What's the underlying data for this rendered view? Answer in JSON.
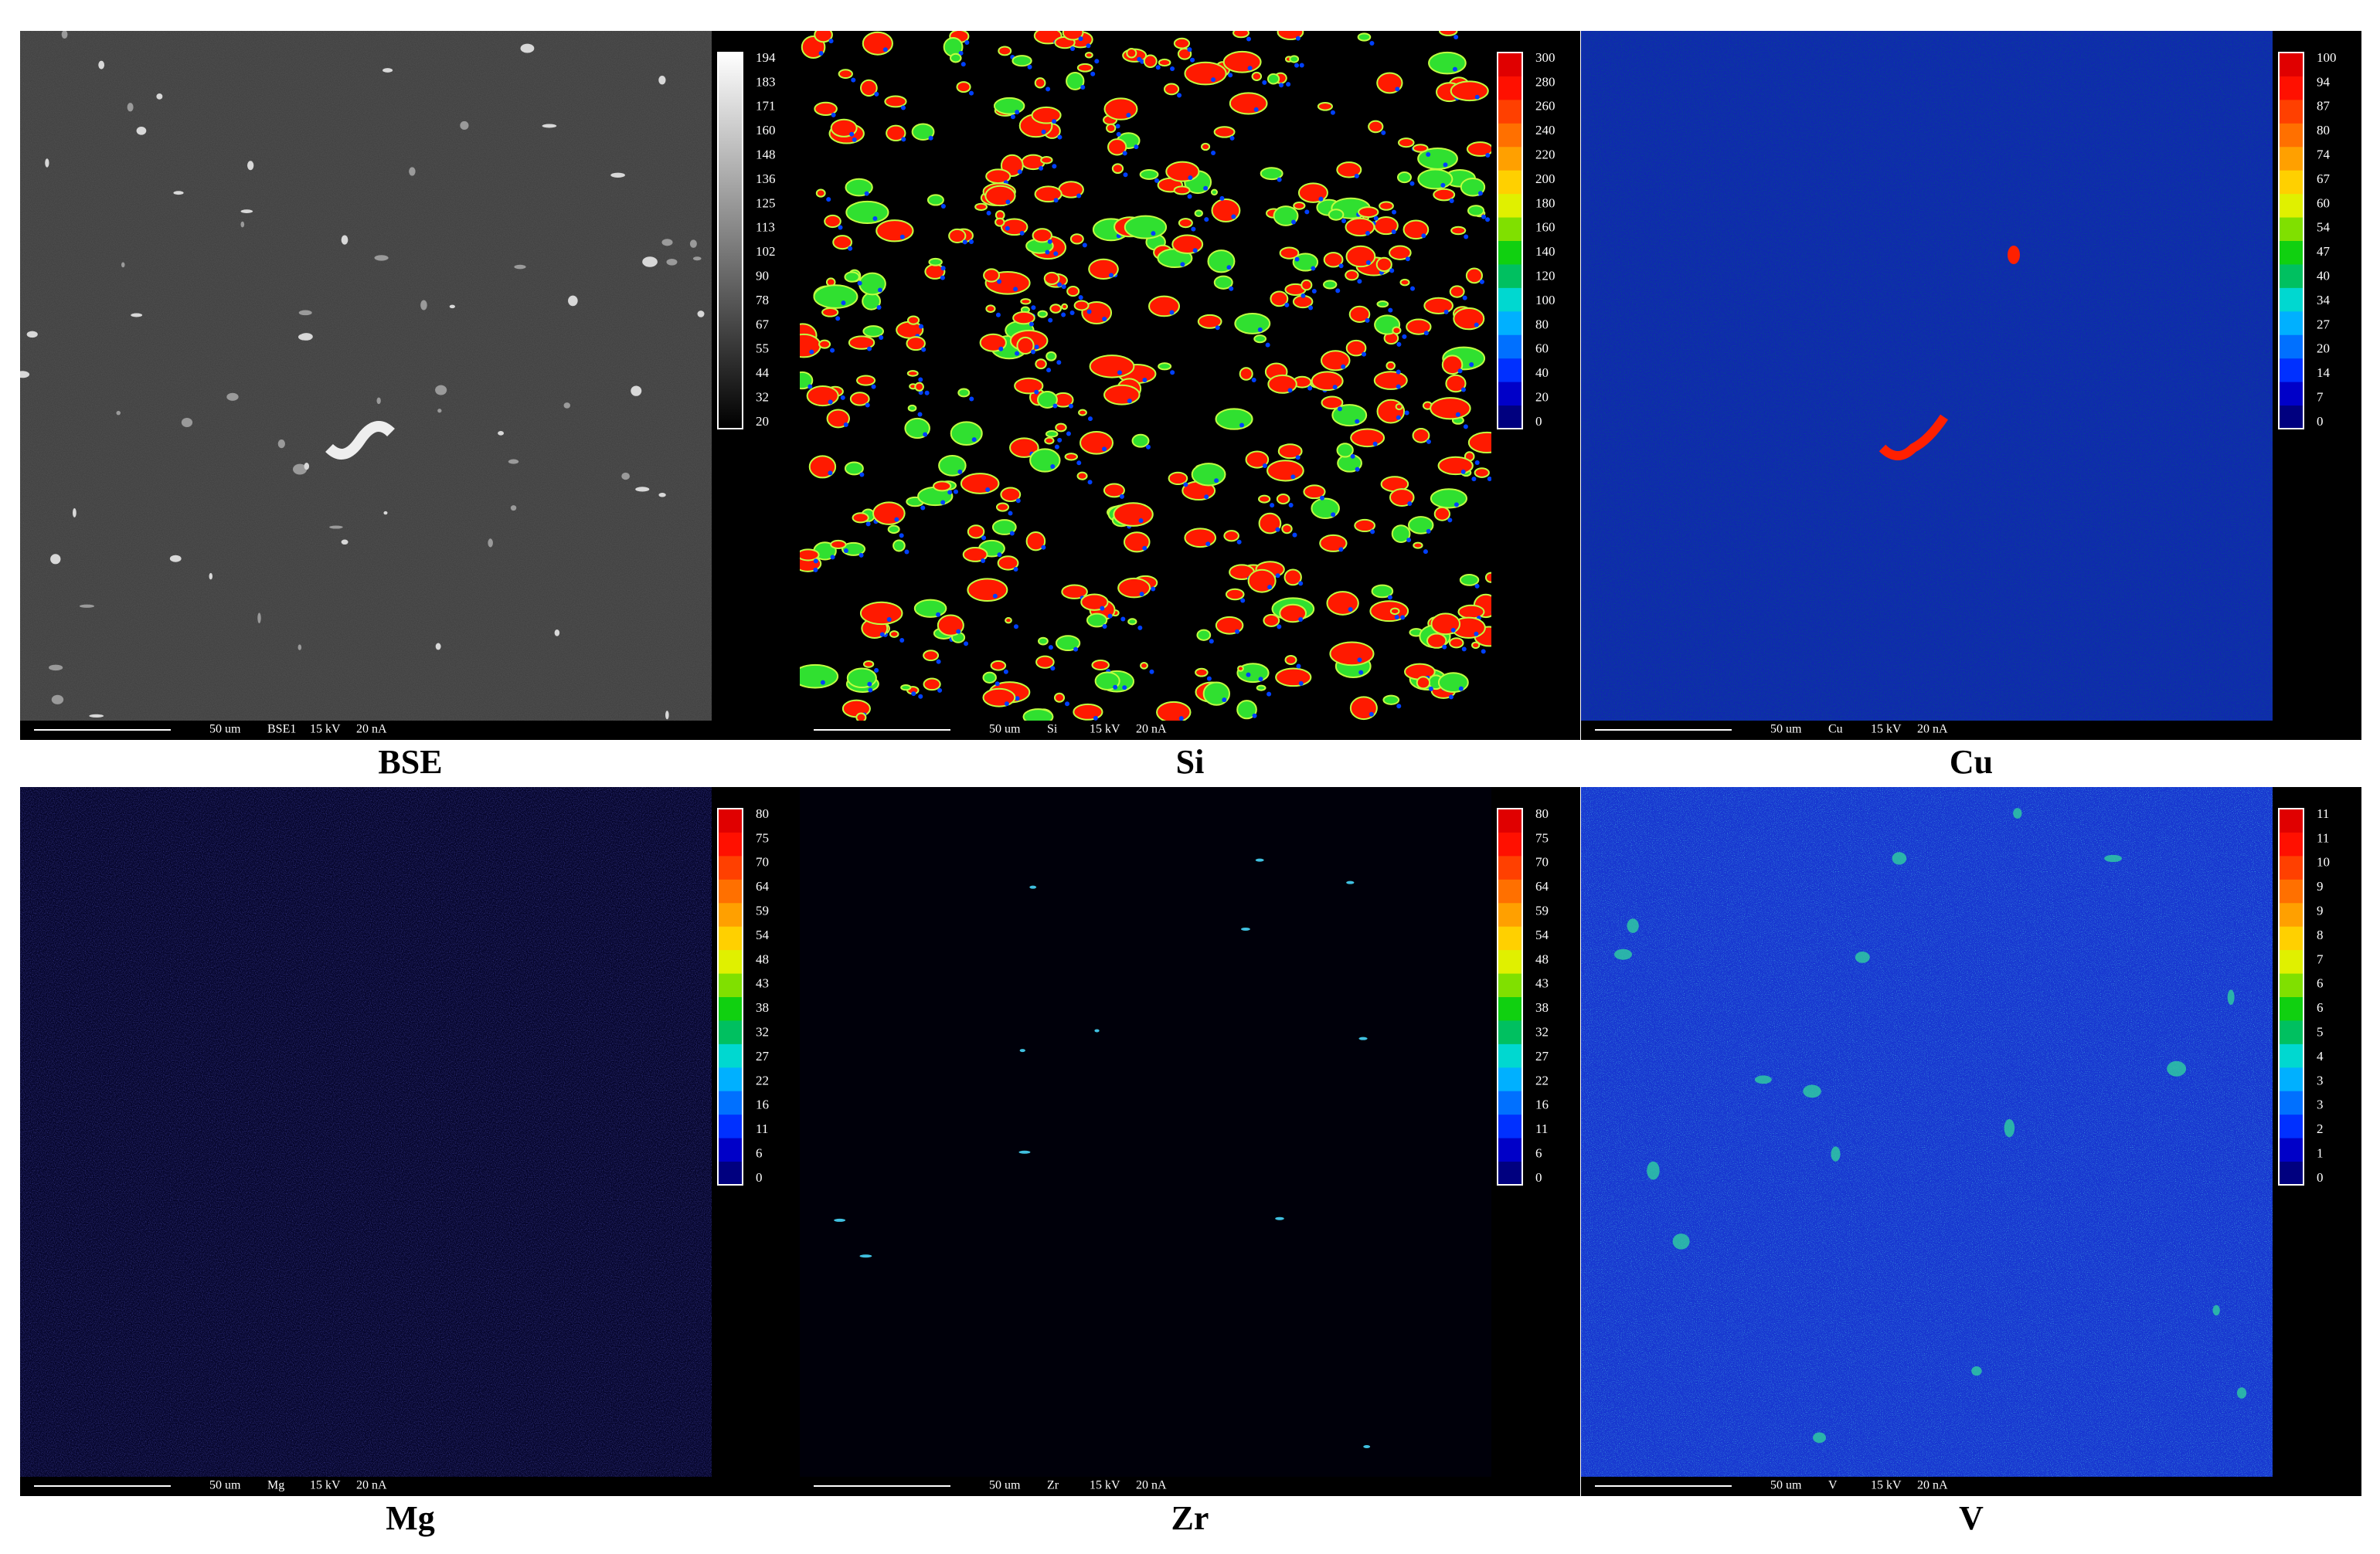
{
  "panels": [
    {
      "caption": "BSE",
      "scale": "50 um",
      "signal": "BSE1",
      "kv": "15 kV",
      "current": "20 nA",
      "colorbar": [
        194,
        183,
        171,
        160,
        148,
        136,
        125,
        113,
        102,
        90,
        78,
        67,
        55,
        44,
        32,
        20
      ]
    },
    {
      "caption": "Si",
      "scale": "50 um",
      "signal": "Si",
      "kv": "15 kV",
      "current": "20 nA",
      "colorbar": [
        300,
        280,
        260,
        240,
        220,
        200,
        180,
        160,
        140,
        120,
        100,
        80,
        60,
        40,
        20,
        0
      ]
    },
    {
      "caption": "Cu",
      "scale": "50 um",
      "signal": "Cu",
      "kv": "15 kV",
      "current": "20 nA",
      "colorbar": [
        100,
        94,
        87,
        80,
        74,
        67,
        60,
        54,
        47,
        40,
        34,
        27,
        20,
        14,
        7,
        0
      ]
    },
    {
      "caption": "Mg",
      "scale": "50 um",
      "signal": "Mg",
      "kv": "15 kV",
      "current": "20 nA",
      "colorbar": [
        80,
        75,
        70,
        64,
        59,
        54,
        48,
        43,
        38,
        32,
        27,
        22,
        16,
        11,
        6,
        0
      ]
    },
    {
      "caption": "Zr",
      "scale": "50 um",
      "signal": "Zr",
      "kv": "15 kV",
      "current": "20 nA",
      "colorbar": [
        80,
        75,
        70,
        64,
        59,
        54,
        48,
        43,
        38,
        32,
        27,
        22,
        16,
        11,
        6,
        0
      ]
    },
    {
      "caption": "V",
      "scale": "50 um",
      "signal": "V",
      "kv": "15 kV",
      "current": "20 nA",
      "colorbar": [
        11,
        11,
        10,
        9,
        9,
        8,
        7,
        6,
        6,
        5,
        4,
        3,
        3,
        2,
        1,
        0
      ]
    }
  ]
}
